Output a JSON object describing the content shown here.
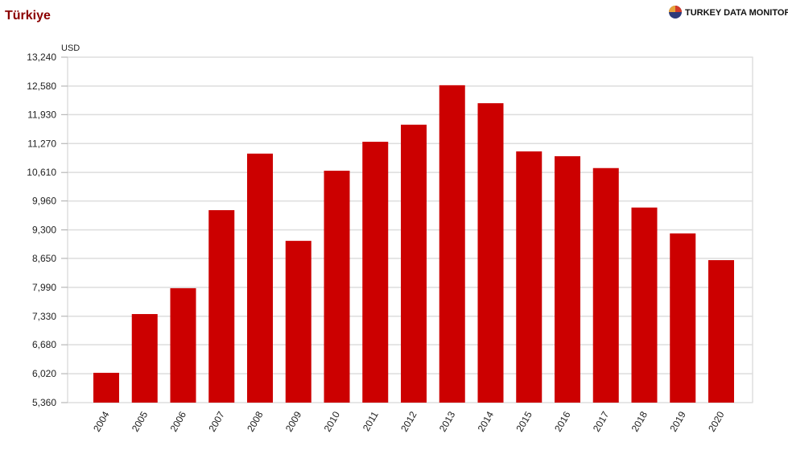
{
  "chart_data": {
    "type": "bar",
    "title": "Türkiye",
    "brand": "TURKEY DATA MONITOR",
    "y_label": "USD",
    "categories": [
      "2004",
      "2005",
      "2006",
      "2007",
      "2008",
      "2009",
      "2010",
      "2011",
      "2012",
      "2013",
      "2014",
      "2015",
      "2016",
      "2017",
      "2018",
      "2019",
      "2020"
    ],
    "values": [
      6040,
      7380,
      7970,
      9750,
      11040,
      9050,
      10650,
      11310,
      11700,
      12600,
      12190,
      11090,
      10980,
      10710,
      9810,
      9220,
      8610
    ],
    "color": "#cc0000",
    "ylim": [
      5360,
      13240
    ],
    "yticks": [
      {
        "value": 5360,
        "label": "5,360"
      },
      {
        "value": 6020,
        "label": "6,020"
      },
      {
        "value": 6680,
        "label": "6,680"
      },
      {
        "value": 7330,
        "label": "7,330"
      },
      {
        "value": 7990,
        "label": "7,990"
      },
      {
        "value": 8650,
        "label": "8,650"
      },
      {
        "value": 9300,
        "label": "9,300"
      },
      {
        "value": 9960,
        "label": "9,960"
      },
      {
        "value": 10610,
        "label": "10,610"
      },
      {
        "value": 11270,
        "label": "11,270"
      },
      {
        "value": 11930,
        "label": "11,930"
      },
      {
        "value": 12580,
        "label": "12,580"
      },
      {
        "value": 13240,
        "label": "13,240"
      }
    ],
    "grid": true
  }
}
